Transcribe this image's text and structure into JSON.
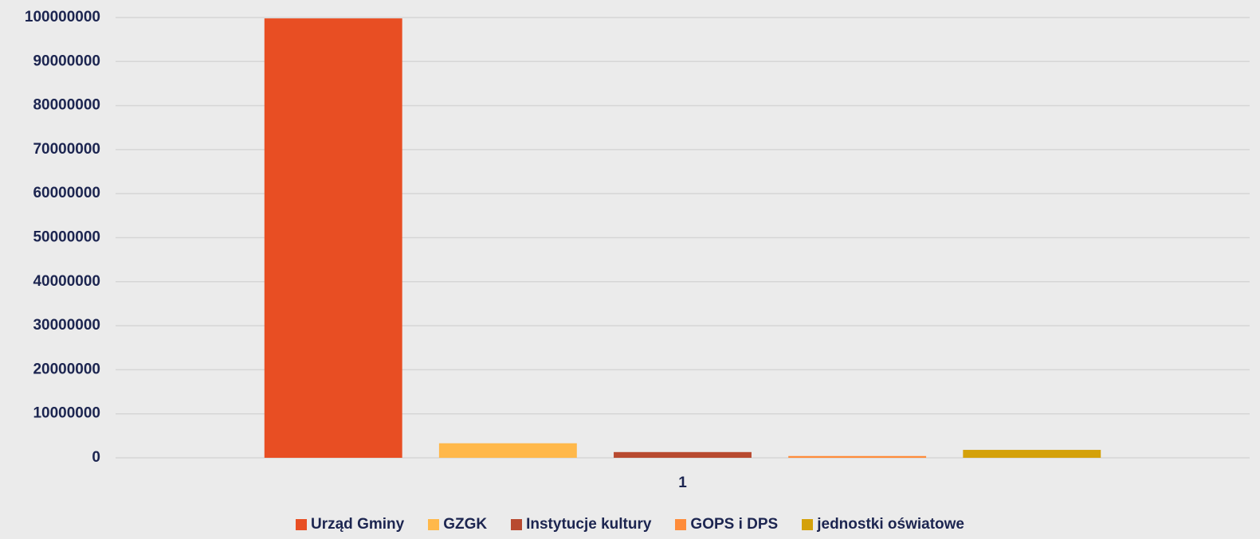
{
  "chart_data": {
    "type": "bar",
    "categories": [
      "1"
    ],
    "series": [
      {
        "name": "Urząd Gminy",
        "color": "#e84e23",
        "values": [
          99800000
        ]
      },
      {
        "name": "GZGK",
        "color": "#ffb84a",
        "values": [
          3300000
        ]
      },
      {
        "name": "Instytucje kultury",
        "color": "#b84a30",
        "values": [
          1300000
        ]
      },
      {
        "name": "GOPS i DPS",
        "color": "#ff8c3a",
        "values": [
          400000
        ]
      },
      {
        "name": "jednostki oświatowe",
        "color": "#d4a10a",
        "values": [
          1800000
        ]
      }
    ],
    "ylim": [
      0,
      100000000
    ],
    "yticks": [
      0,
      10000000,
      20000000,
      30000000,
      40000000,
      50000000,
      60000000,
      70000000,
      80000000,
      90000000,
      100000000
    ],
    "grid": true,
    "legend": "bottom"
  }
}
